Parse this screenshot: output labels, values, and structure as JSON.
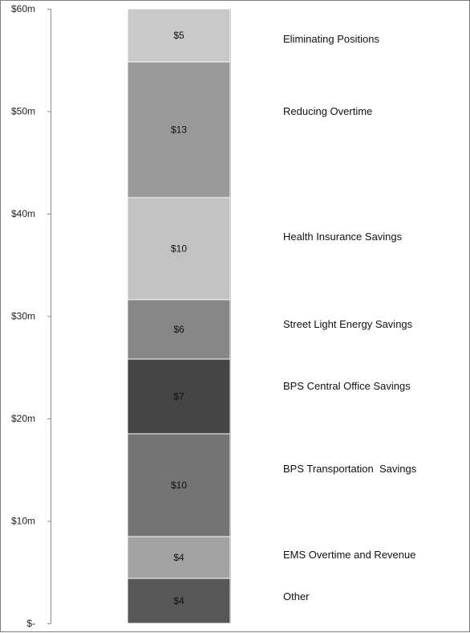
{
  "chart_data": {
    "type": "bar",
    "stacked": true,
    "categories": [
      ""
    ],
    "y_ticks": [
      "$-",
      "$10m",
      "$20m",
      "$30m",
      "$40m",
      "$50m",
      "$60m"
    ],
    "ylim": [
      0,
      60
    ],
    "grid": false,
    "legend": "none",
    "series": [
      {
        "name": "Other",
        "values": [
          4.4
        ],
        "label": "$4",
        "color": "#575757"
      },
      {
        "name": "EMS Overtime and Revenue",
        "values": [
          4.1
        ],
        "label": "$4",
        "color": "#a3a3a3"
      },
      {
        "name": "BPS Transportation  Savings",
        "values": [
          10.0
        ],
        "label": "$10",
        "color": "#747474"
      },
      {
        "name": "BPS Central Office Savings",
        "values": [
          7.3
        ],
        "label": "$7",
        "color": "#454545"
      },
      {
        "name": "Street Light Energy Savings",
        "values": [
          5.8
        ],
        "label": "$6",
        "color": "#878787"
      },
      {
        "name": "Health Insurance Savings",
        "values": [
          10.0
        ],
        "label": "$10",
        "color": "#c2c2c2"
      },
      {
        "name": "Reducing Overtime",
        "values": [
          13.2
        ],
        "label": "$13",
        "color": "#9a9a9a"
      },
      {
        "name": "Eliminating Positions",
        "values": [
          5.2
        ],
        "label": "$5",
        "color": "#c9c9c9"
      }
    ]
  }
}
